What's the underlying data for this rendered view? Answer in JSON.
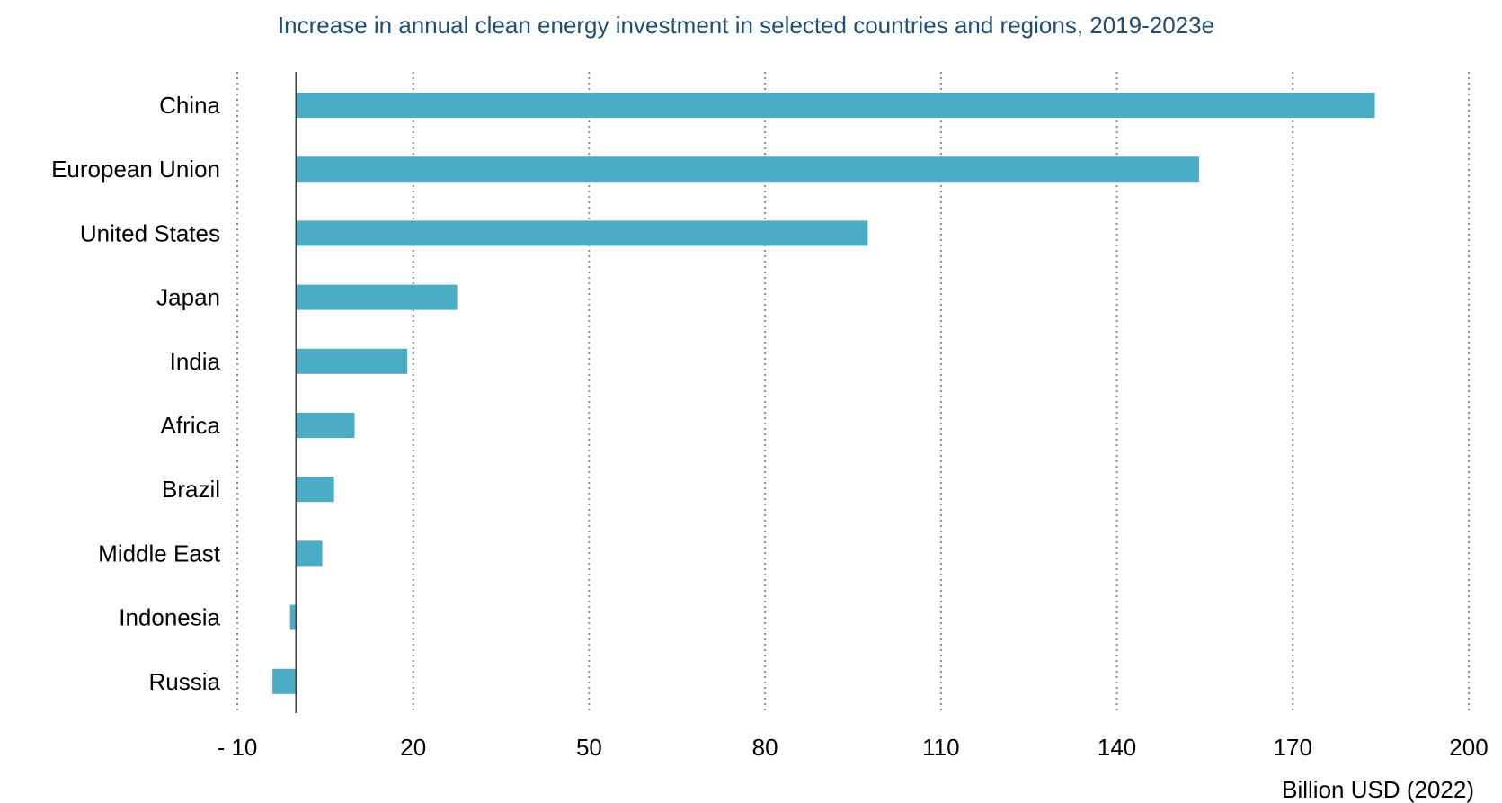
{
  "chart_data": {
    "type": "bar",
    "orientation": "horizontal",
    "title": "Increase in annual clean energy investment in selected countries and regions, 2019-2023e",
    "xlabel": "Billion USD (2022)",
    "ylabel": "",
    "categories": [
      "China",
      "European Union",
      "United States",
      "Japan",
      "India",
      "Africa",
      "Brazil",
      "Middle East",
      "Indonesia",
      "Russia"
    ],
    "values": [
      184,
      154,
      97.5,
      27.5,
      19,
      10,
      6.5,
      4.5,
      -1,
      -4
    ],
    "xlim": [
      -10,
      200
    ],
    "xticks": [
      -10,
      20,
      50,
      80,
      110,
      140,
      170,
      200
    ],
    "xtick_labels": [
      "- 10",
      "20",
      "50",
      "80",
      "110",
      "140",
      "170",
      "200"
    ],
    "grid": "vertical dotted",
    "legend": "none",
    "colors": {
      "bar": "#4bacc6",
      "title": "#1f4e79",
      "gridline": "#8c8c8c",
      "zero_line": "#404040"
    }
  }
}
